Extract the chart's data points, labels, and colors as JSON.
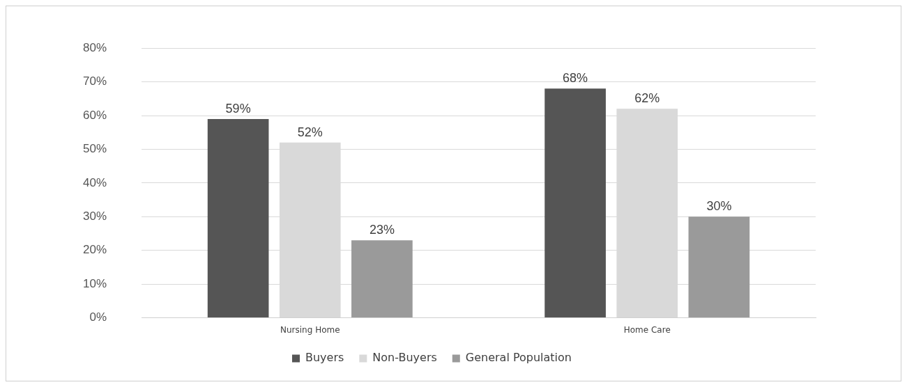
{
  "chart_data": {
    "type": "bar",
    "categories": [
      "Nursing Home",
      "Home Care"
    ],
    "series": [
      {
        "name": "Buyers",
        "color": "#555555",
        "values": [
          59,
          68
        ]
      },
      {
        "name": "Non-Buyers",
        "color": "#d9d9d9",
        "values": [
          52,
          62
        ]
      },
      {
        "name": "General Population",
        "color": "#9a9a9a",
        "values": [
          23,
          30
        ]
      }
    ],
    "ylim": [
      0,
      80
    ],
    "yticks": [
      {
        "value": 0,
        "label": "0%"
      },
      {
        "value": 10,
        "label": "10%"
      },
      {
        "value": 20,
        "label": "20%"
      },
      {
        "value": 30,
        "label": "30%"
      },
      {
        "value": 40,
        "label": "40%"
      },
      {
        "value": 50,
        "label": "50%"
      },
      {
        "value": 60,
        "label": "60%"
      },
      {
        "value": 70,
        "label": "70%"
      },
      {
        "value": 80,
        "label": "80%"
      }
    ],
    "value_labels": [
      [
        "59%",
        "68%"
      ],
      [
        "52%",
        "62%"
      ],
      [
        "23%",
        "30%"
      ]
    ],
    "grid": "y",
    "legend": "bottom"
  }
}
